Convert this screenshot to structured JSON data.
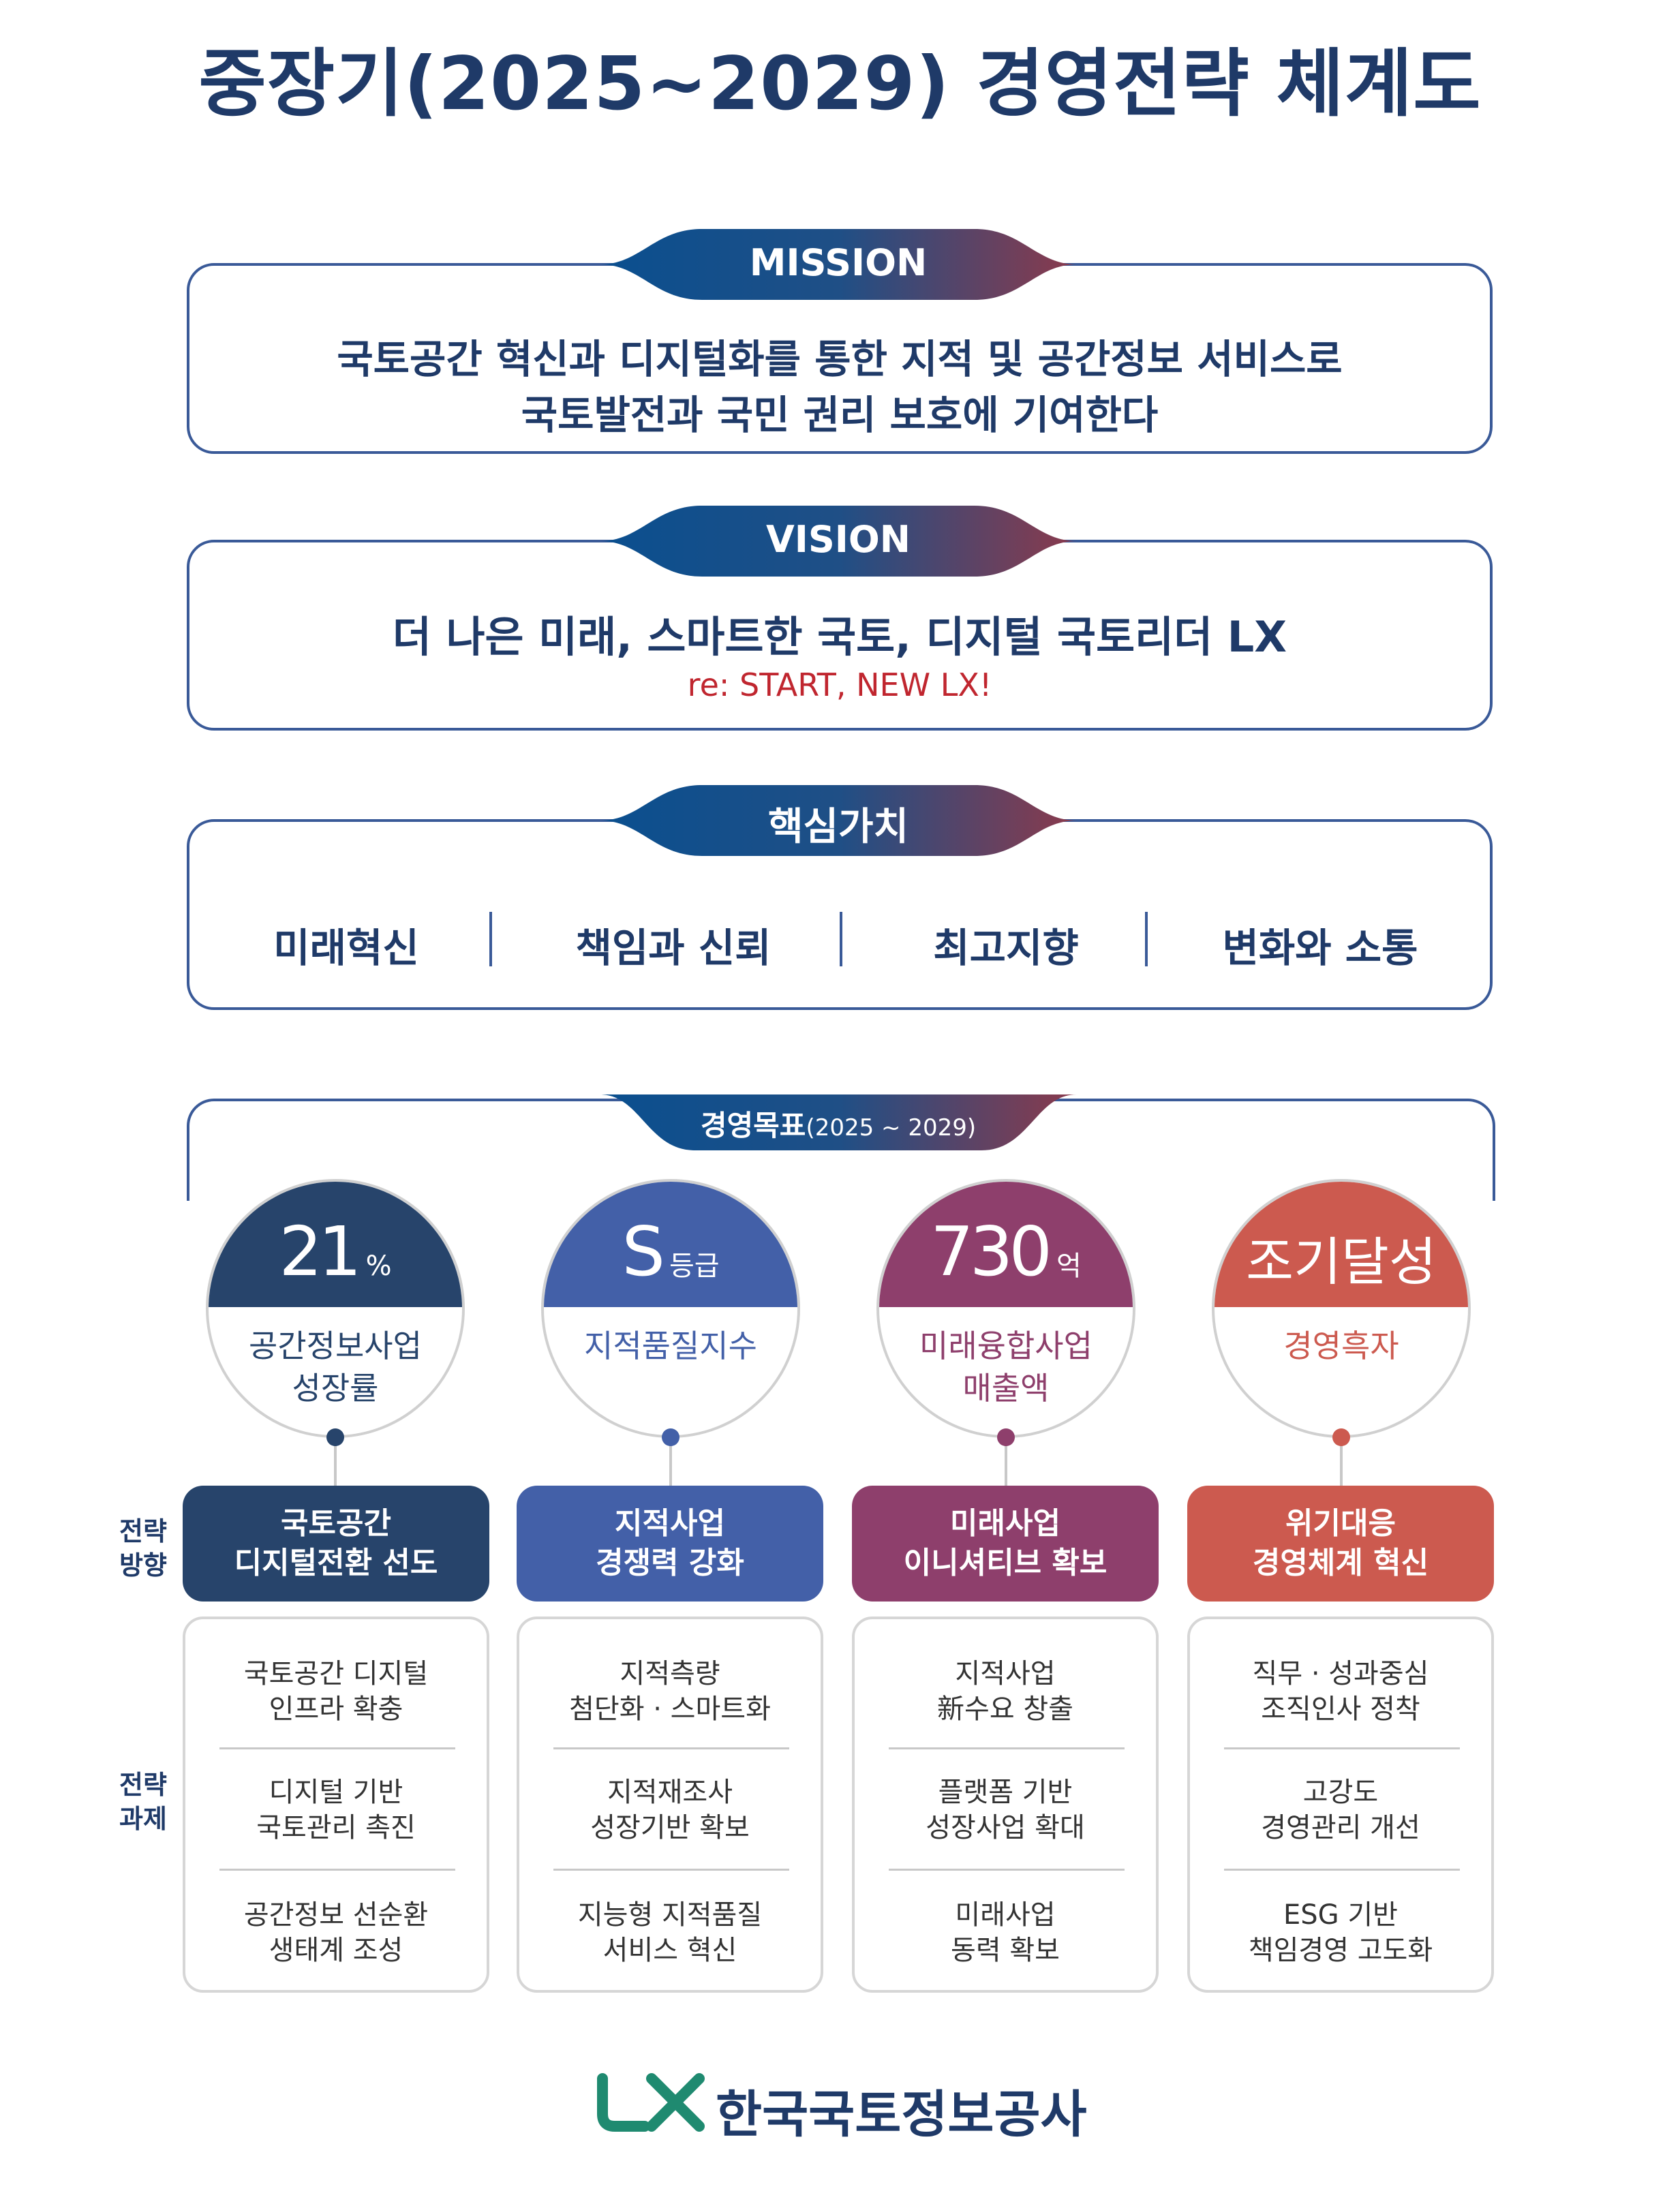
{
  "title": "중장기(2025~2029) 경영전략 체계도",
  "mission": {
    "tab": "MISSION",
    "line1": "국토공간 혁신과 디지털화를 통한 지적 및 공간정보 서비스로",
    "line2": "국토발전과 국민 권리 보호에 기여한다"
  },
  "vision": {
    "tab": "VISION",
    "line1": "더 나은 미래, 스마트한 국토, 디지털 국토리더 LX",
    "slogan": "re: START, NEW LX!"
  },
  "core_values": {
    "tab": "핵심가치",
    "items": [
      "미래혁신",
      "책임과 신뢰",
      "최고지향",
      "변화와 소통"
    ]
  },
  "goals": {
    "tab": "경영목표",
    "tab_period": "(2025 ~ 2029)",
    "items": [
      {
        "value": "21",
        "unit": "%",
        "desc1": "공간정보사업",
        "desc2": "성장률",
        "color": "#27446b"
      },
      {
        "value": "S",
        "unit": "등급",
        "desc1": "지적품질지수",
        "desc2": "",
        "color": "#4360a8"
      },
      {
        "value": "730",
        "unit": "억",
        "desc1": "미래융합사업",
        "desc2": "매출액",
        "color": "#8e3f6c"
      },
      {
        "value": "조기달성",
        "unit": "",
        "desc1": "경영흑자",
        "desc2": "",
        "color": "#cc5a4f"
      }
    ]
  },
  "labels": {
    "direction_1": "전략",
    "direction_2": "방향",
    "tasks_1": "전략",
    "tasks_2": "과제"
  },
  "strategies": [
    {
      "direction1": "국토공간",
      "direction2": "디지털전환 선도",
      "color": "#27446b",
      "tasks": [
        {
          "l1": "국토공간 디지털",
          "l2": "인프라 확충"
        },
        {
          "l1": "디지털 기반",
          "l2": "국토관리 촉진"
        },
        {
          "l1": "공간정보 선순환",
          "l2": "생태계 조성"
        }
      ]
    },
    {
      "direction1": "지적사업",
      "direction2": "경쟁력 강화",
      "color": "#4360a8",
      "tasks": [
        {
          "l1": "지적측량",
          "l2": "첨단화 · 스마트화"
        },
        {
          "l1": "지적재조사",
          "l2": "성장기반 확보"
        },
        {
          "l1": "지능형 지적품질",
          "l2": "서비스 혁신"
        }
      ]
    },
    {
      "direction1": "미래사업",
      "direction2": "이니셔티브 확보",
      "color": "#8e3f6c",
      "tasks": [
        {
          "l1": "지적사업",
          "l2": "新수요 창출"
        },
        {
          "l1": "플랫폼 기반",
          "l2": "성장사업 확대"
        },
        {
          "l1": "미래사업",
          "l2": "동력 확보"
        }
      ]
    },
    {
      "direction1": "위기대응",
      "direction2": "경영체계 혁신",
      "color": "#cc5a4f",
      "tasks": [
        {
          "l1": "직무 · 성과중심",
          "l2": "조직인사 정착"
        },
        {
          "l1": "고강도",
          "l2": "경영관리 개선"
        },
        {
          "l1": "ESG 기반",
          "l2": "책임경영 고도화"
        }
      ]
    }
  ],
  "footer": {
    "logo_text": "LX",
    "org_name": "한국국토정보공사",
    "logo_color": "#1f8a70"
  }
}
